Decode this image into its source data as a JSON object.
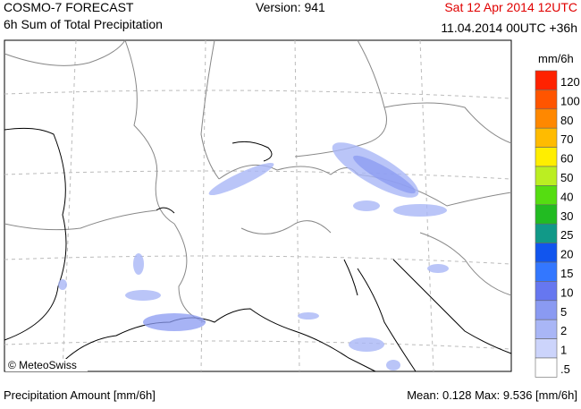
{
  "header": {
    "title": "COSMO-7 FORECAST",
    "subtitle": "6h Sum of Total Precipitation",
    "version": "Version: 941",
    "valid": "Sat 12 Apr 2014 12UTC",
    "run": "11.04.2014 00UTC +36h"
  },
  "map": {
    "copyright": "© MeteoSwiss"
  },
  "legend": {
    "unit": "mm/6h",
    "levels": [
      {
        "label": "120",
        "color": "#ff2200"
      },
      {
        "label": "100",
        "color": "#ff5500"
      },
      {
        "label": "80",
        "color": "#ff8800"
      },
      {
        "label": "70",
        "color": "#ffbb00"
      },
      {
        "label": "60",
        "color": "#ffee00"
      },
      {
        "label": "50",
        "color": "#bbee22"
      },
      {
        "label": "40",
        "color": "#55dd11"
      },
      {
        "label": "30",
        "color": "#22bb22"
      },
      {
        "label": "25",
        "color": "#119988"
      },
      {
        "label": "20",
        "color": "#1155ee"
      },
      {
        "label": "15",
        "color": "#3377ff"
      },
      {
        "label": "10",
        "color": "#6677f0"
      },
      {
        "label": "5",
        "color": "#8a9af2"
      },
      {
        "label": "2",
        "color": "#a9b6f6"
      },
      {
        "label": "1",
        "color": "#ccd4fb"
      },
      {
        "label": ".5",
        "color": "#ffffff"
      }
    ]
  },
  "footer": {
    "left": "Precipitation Amount [mm/6h]",
    "right": "Mean:  0.128 Max:  9.536 [mm/6h]"
  }
}
